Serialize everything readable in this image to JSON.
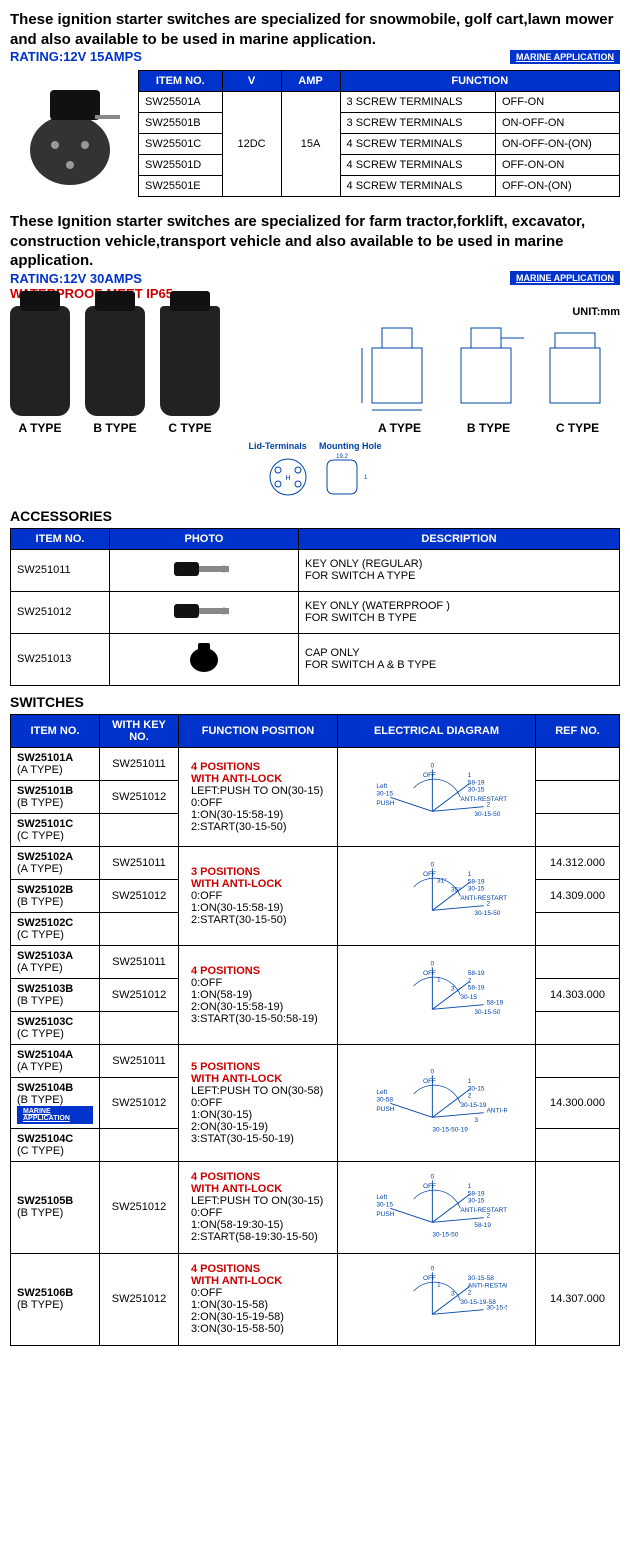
{
  "intro1": {
    "desc": "These ignition starter switches are specialized for snowmobile, golf cart,lawn mower and also available to be used in marine application.",
    "rating": "RATING:12V 15AMPS",
    "marine": "MARINE APPLICATION"
  },
  "table1": {
    "headers": [
      "ITEM NO.",
      "V",
      "AMP",
      "FUNCTION"
    ],
    "voltage": "12DC",
    "amp": "15A",
    "rows": [
      {
        "item": "SW25501A",
        "terminals": "3 SCREW TERMINALS",
        "func": "OFF-ON"
      },
      {
        "item": "SW25501B",
        "terminals": "3 SCREW TERMINALS",
        "func": "ON-OFF-ON"
      },
      {
        "item": "SW25501C",
        "terminals": "4 SCREW TERMINALS",
        "func": "ON-OFF-ON-(ON)"
      },
      {
        "item": "SW25501D",
        "terminals": "4 SCREW TERMINALS",
        "func": "OFF-ON-ON"
      },
      {
        "item": "SW25501E",
        "terminals": "4 SCREW TERMINALS",
        "func": "OFF-ON-(ON)"
      }
    ]
  },
  "intro2": {
    "desc": "These Ignition starter switches are specialized for farm tractor,forklift, excavator, construction vehicle,transport vehicle and also available to be used in marine application.",
    "rating": "RATING:12V 30AMPS",
    "waterproof": "WATERPROOF:MEET IP65",
    "marine": "MARINE APPLICATION",
    "unit": "UNIT:mm"
  },
  "types": {
    "a": "A TYPE",
    "b": "B TYPE",
    "c": "C TYPE",
    "lid": "Lid-Terminals",
    "mount": "Mounting Hole"
  },
  "accessories": {
    "title": "ACCESSORIES",
    "headers": [
      "ITEM NO.",
      "PHOTO",
      "DESCRIPTION"
    ],
    "rows": [
      {
        "item": "SW251011",
        "desc1": "KEY ONLY (REGULAR)",
        "desc2": "FOR SWITCH A TYPE"
      },
      {
        "item": "SW251012",
        "desc1": "KEY ONLY (WATERPROOF )",
        "desc2": "FOR SWITCH B TYPE"
      },
      {
        "item": "SW251013",
        "desc1": "CAP ONLY",
        "desc2": "FOR SWITCH A & B TYPE"
      }
    ]
  },
  "switches": {
    "title": "SWITCHES",
    "headers": [
      "ITEM NO.",
      "WITH KEY NO.",
      "FUNCTION POSITION",
      "ELECTRICAL DIAGRAM",
      "REF NO."
    ],
    "groups": [
      {
        "items": [
          {
            "item": "SW25101A",
            "type": "(A TYPE)",
            "key": "SW251011",
            "ref": ""
          },
          {
            "item": "SW25101B",
            "type": "(B TYPE)",
            "key": "SW251012",
            "ref": ""
          },
          {
            "item": "SW25101C",
            "type": "(C TYPE)",
            "key": "",
            "ref": ""
          }
        ],
        "func_pos": "4 POSITIONS",
        "func_anti": "WITH ANTI-LOCK",
        "func_lines": [
          "LEFT:PUSH TO ON(30-15)",
          "0:OFF",
          "1:ON(30-15:58-19)",
          "2:START(30-15-50)"
        ],
        "diagram_labels": [
          "Left",
          "30-15",
          "PUSH",
          "0",
          "OFF",
          "1",
          "58-19",
          "30-15",
          "ANTI-RESTART",
          "2",
          "30-15-50"
        ]
      },
      {
        "items": [
          {
            "item": "SW25102A",
            "type": "(A TYPE)",
            "key": "SW251011",
            "ref": "14.312.000"
          },
          {
            "item": "SW25102B",
            "type": "(B TYPE)",
            "key": "SW251012",
            "ref": "14.309.000"
          },
          {
            "item": "SW25102C",
            "type": "(C TYPE)",
            "key": "",
            "ref": ""
          }
        ],
        "func_pos": "3 POSITIONS",
        "func_anti": "WITH ANTI-LOCK",
        "func_lines": [
          "0:OFF",
          "1:ON(30-15:58-19)",
          "2:START(30-15-50)"
        ],
        "diagram_labels": [
          "0",
          "OFF",
          "31°",
          "1",
          "58-19",
          "30-15",
          "ANTI-RESTART",
          "35°",
          "2",
          "30-15-50"
        ]
      },
      {
        "items": [
          {
            "item": "SW25103A",
            "type": "(A TYPE)",
            "key": "SW251011",
            "ref": ""
          },
          {
            "item": "SW25103B",
            "type": "(B TYPE)",
            "key": "SW251012",
            "ref": "14.303.000"
          },
          {
            "item": "SW25103C",
            "type": "(C TYPE)",
            "key": "",
            "ref": ""
          }
        ],
        "func_pos": "4 POSITIONS",
        "func_anti": "",
        "func_lines": [
          "0:OFF",
          "1:ON(58-19)",
          "2:ON(30-15:58-19)",
          "3:START(30-15-50:58-19)"
        ],
        "diagram_labels": [
          "0",
          "OFF",
          "1",
          "58-19",
          "2",
          "58-19",
          "30-15",
          "3",
          "58-19",
          "30-15-50"
        ]
      },
      {
        "items": [
          {
            "item": "SW25104A",
            "type": "(A TYPE)",
            "key": "SW251011",
            "ref": ""
          },
          {
            "item": "SW25104B",
            "type": "(B TYPE)",
            "key": "SW251012",
            "ref": "14.300.000",
            "badge": "MARINE APPLICATION"
          },
          {
            "item": "SW25104C",
            "type": "(C TYPE)",
            "key": "",
            "ref": ""
          }
        ],
        "func_pos": "5 POSITIONS",
        "func_anti": "WITH ANTI-LOCK",
        "func_lines": [
          "LEFT:PUSH TO ON(30-58)",
          "0:OFF",
          "1:ON(30-15)",
          "2:ON(30-15-19)",
          "3:STAT(30-15-50-19)"
        ],
        "diagram_labels": [
          "Left",
          "30-58",
          "PUSH",
          "0",
          "OFF",
          "1",
          "30-15",
          "2",
          "30-15-19",
          "ANTI-RESTART",
          "3",
          "30-15-50-19"
        ]
      },
      {
        "items": [
          {
            "item": "SW25105B",
            "type": "(B TYPE)",
            "key": "SW251012",
            "ref": ""
          }
        ],
        "func_pos": "4 POSITIONS",
        "func_anti": "WITH ANTI-LOCK",
        "func_lines": [
          "LEFT:PUSH TO ON(30-15)",
          "0:OFF",
          "1:ON(58-19:30-15)",
          "2:START(58-19:30-15-50)"
        ],
        "diagram_labels": [
          "Left",
          "30-15",
          "PUSH",
          "0",
          "OFF",
          "1",
          "58-19",
          "30-15",
          "ANTI-RESTART",
          "2",
          "58-19",
          "30-15-50"
        ]
      },
      {
        "items": [
          {
            "item": "SW25106B",
            "type": "(B TYPE)",
            "key": "SW251012",
            "ref": "14.307.000"
          }
        ],
        "func_pos": "4 POSITIONS",
        "func_anti": "WITH ANTI-LOCK",
        "func_lines": [
          "0:OFF",
          "1:ON(30-15-58)",
          "2:ON(30-15-19-58)",
          "3:ON(30-15-58-50)"
        ],
        "diagram_labels": [
          "0",
          "OFF",
          "1",
          "30-15-58",
          "ANTI-RESTART",
          "2",
          "30-15-19-58",
          "3",
          "30-15-58-50"
        ]
      }
    ]
  }
}
